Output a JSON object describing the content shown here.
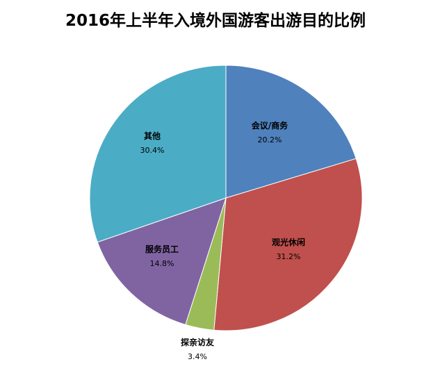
{
  "chart_data": {
    "type": "pie",
    "title": "2016年上半年入境外国游客出游目的比例",
    "slices": [
      {
        "label": "会议/商务",
        "value": 20.2,
        "value_label": "20.2%",
        "color": "#4f81bd"
      },
      {
        "label": "观光休闲",
        "value": 31.2,
        "value_label": "31.2%",
        "color": "#c0504d"
      },
      {
        "label": "探亲访友",
        "value": 3.4,
        "value_label": "3.4%",
        "color": "#9bbb59"
      },
      {
        "label": "服务员工",
        "value": 14.8,
        "value_label": "14.8%",
        "color": "#8064a2"
      },
      {
        "label": "其他",
        "value": 30.4,
        "value_label": "30.4%",
        "color": "#4bacc6"
      }
    ],
    "start_angle": "12 o'clock",
    "direction": "clockwise",
    "legend": "none"
  }
}
